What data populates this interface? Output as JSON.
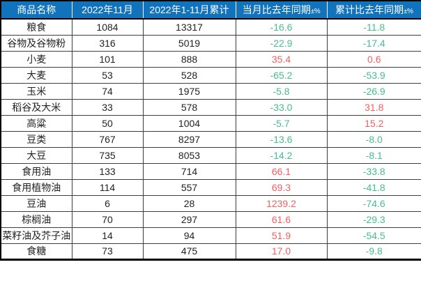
{
  "header": {
    "columns": [
      {
        "text": "商品名称",
        "suffix": ""
      },
      {
        "text": "2022年11月",
        "suffix": ""
      },
      {
        "text": "2022年1-11月累计",
        "suffix": ""
      },
      {
        "text": "当月比去年同期",
        "suffix": "±%"
      },
      {
        "text": "累计比去年同期",
        "suffix": "±%"
      }
    ]
  },
  "colors": {
    "header_bg": "#1173BB",
    "header_text": "#ffffff",
    "increase": "#F25F5F",
    "decrease": "#45BE8E",
    "body_text": "#222222",
    "grid_line": "#3d3d3d"
  },
  "chart_data": {
    "type": "table",
    "columns": [
      "商品名称",
      "2022年11月",
      "2022年1-11月累计",
      "当月比去年同期±%",
      "累计比去年同期±%"
    ],
    "rows": [
      [
        "粮食",
        "1084",
        "13317",
        "-16.6",
        "-11.8"
      ],
      [
        "谷物及谷物粉",
        "316",
        "5019",
        "-22.9",
        "-17.4"
      ],
      [
        "小麦",
        "101",
        "888",
        "35.4",
        "0.6"
      ],
      [
        "大麦",
        "53",
        "528",
        "-65.2",
        "-53.9"
      ],
      [
        "玉米",
        "74",
        "1975",
        "-5.8",
        "-26.9"
      ],
      [
        "稻谷及大米",
        "33",
        "578",
        "-33.0",
        "31.8"
      ],
      [
        "高粱",
        "50",
        "1004",
        "-5.7",
        "15.2"
      ],
      [
        "豆类",
        "767",
        "8297",
        "-13.6",
        "-8.0"
      ],
      [
        "大豆",
        "735",
        "8053",
        "-14.2",
        "-8.1"
      ],
      [
        "食用油",
        "133",
        "714",
        "66.1",
        "-33.8"
      ],
      [
        "食用植物油",
        "114",
        "557",
        "69.3",
        "-41.8"
      ],
      [
        "豆油",
        "6",
        "28",
        "1239.2",
        "-74.6"
      ],
      [
        "棕榈油",
        "70",
        "297",
        "61.6",
        "-29.3"
      ],
      [
        "菜籽油及芥子油",
        "14",
        "94",
        "51.9",
        "-54.5"
      ],
      [
        "食糖",
        "73",
        "475",
        "17.0",
        "-9.8"
      ]
    ],
    "layout": {
      "legend": "none",
      "grid": true,
      "value_color_rule": "negative values green (decrease), positive values red (increase)"
    }
  }
}
